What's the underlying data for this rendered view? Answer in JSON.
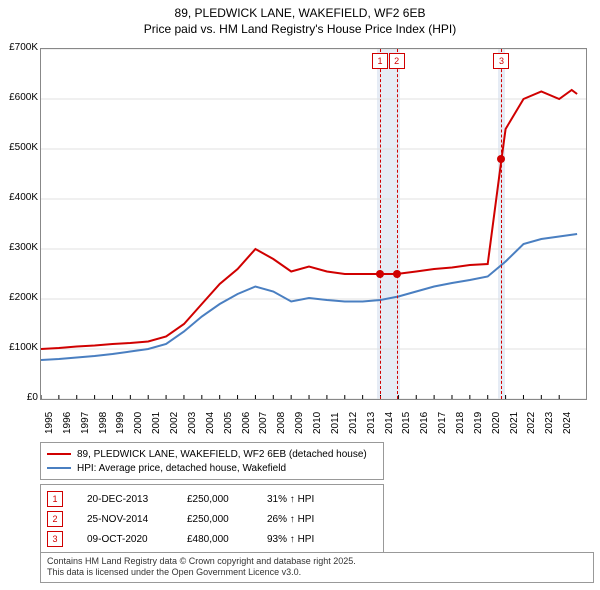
{
  "title": {
    "line1": "89, PLEDWICK LANE, WAKEFIELD, WF2 6EB",
    "line2": "Price paid vs. HM Land Registry's House Price Index (HPI)"
  },
  "chart": {
    "type": "line",
    "x_min": 1995,
    "x_max": 2025.5,
    "y_min": 0,
    "y_max": 700000,
    "y_ticks": [
      0,
      100000,
      200000,
      300000,
      400000,
      500000,
      600000,
      700000
    ],
    "y_tick_labels": [
      "£0",
      "£100K",
      "£200K",
      "£300K",
      "£400K",
      "£500K",
      "£600K",
      "£700K"
    ],
    "x_ticks": [
      1995,
      1996,
      1997,
      1998,
      1999,
      2000,
      2001,
      2002,
      2003,
      2004,
      2005,
      2006,
      2007,
      2008,
      2009,
      2010,
      2011,
      2012,
      2013,
      2014,
      2015,
      2016,
      2017,
      2018,
      2019,
      2020,
      2021,
      2022,
      2023,
      2024
    ],
    "grid_color": "#e0e0e0",
    "background_color": "#ffffff",
    "band_color": "#e6ecf5",
    "series": {
      "price_paid": {
        "color": "#d00000",
        "width": 2,
        "points": [
          [
            1995,
            100000
          ],
          [
            1996,
            102000
          ],
          [
            1997,
            105000
          ],
          [
            1998,
            107000
          ],
          [
            1999,
            110000
          ],
          [
            2000,
            112000
          ],
          [
            2001,
            115000
          ],
          [
            2002,
            125000
          ],
          [
            2003,
            150000
          ],
          [
            2004,
            190000
          ],
          [
            2005,
            230000
          ],
          [
            2006,
            260000
          ],
          [
            2007,
            300000
          ],
          [
            2008,
            280000
          ],
          [
            2009,
            255000
          ],
          [
            2010,
            265000
          ],
          [
            2011,
            255000
          ],
          [
            2012,
            250000
          ],
          [
            2013,
            250000
          ],
          [
            2013.97,
            250000
          ],
          [
            2014.9,
            250000
          ],
          [
            2016,
            255000
          ],
          [
            2017,
            260000
          ],
          [
            2018,
            263000
          ],
          [
            2019,
            268000
          ],
          [
            2020,
            270000
          ],
          [
            2020.77,
            480000
          ],
          [
            2021,
            540000
          ],
          [
            2022,
            600000
          ],
          [
            2023,
            615000
          ],
          [
            2024,
            600000
          ],
          [
            2024.7,
            618000
          ],
          [
            2025,
            610000
          ]
        ]
      },
      "hpi": {
        "color": "#4a7fc1",
        "width": 2,
        "points": [
          [
            1995,
            78000
          ],
          [
            1996,
            80000
          ],
          [
            1997,
            83000
          ],
          [
            1998,
            86000
          ],
          [
            1999,
            90000
          ],
          [
            2000,
            95000
          ],
          [
            2001,
            100000
          ],
          [
            2002,
            110000
          ],
          [
            2003,
            135000
          ],
          [
            2004,
            165000
          ],
          [
            2005,
            190000
          ],
          [
            2006,
            210000
          ],
          [
            2007,
            225000
          ],
          [
            2008,
            215000
          ],
          [
            2009,
            195000
          ],
          [
            2010,
            202000
          ],
          [
            2011,
            198000
          ],
          [
            2012,
            195000
          ],
          [
            2013,
            195000
          ],
          [
            2014,
            198000
          ],
          [
            2015,
            205000
          ],
          [
            2016,
            215000
          ],
          [
            2017,
            225000
          ],
          [
            2018,
            232000
          ],
          [
            2019,
            238000
          ],
          [
            2020,
            245000
          ],
          [
            2021,
            275000
          ],
          [
            2022,
            310000
          ],
          [
            2023,
            320000
          ],
          [
            2024,
            325000
          ],
          [
            2025,
            330000
          ]
        ]
      }
    },
    "markers": [
      {
        "id": "1",
        "x": 2013.97,
        "y": 250000,
        "color": "#d00000"
      },
      {
        "id": "2",
        "x": 2014.9,
        "y": 250000,
        "color": "#d00000"
      },
      {
        "id": "3",
        "x": 2020.77,
        "y": 480000,
        "color": "#d00000"
      }
    ],
    "bands": [
      {
        "from": 2013.8,
        "to": 2015.1
      },
      {
        "from": 2020.55,
        "to": 2020.95
      }
    ]
  },
  "legend": {
    "rows": [
      {
        "color": "#d00000",
        "label": "89, PLEDWICK LANE, WAKEFIELD, WF2 6EB (detached house)"
      },
      {
        "color": "#4a7fc1",
        "label": "HPI: Average price, detached house, Wakefield"
      }
    ]
  },
  "events": [
    {
      "id": "1",
      "color": "#d00000",
      "date": "20-DEC-2013",
      "price": "£250,000",
      "delta": "31% ↑ HPI"
    },
    {
      "id": "2",
      "color": "#d00000",
      "date": "25-NOV-2014",
      "price": "£250,000",
      "delta": "26% ↑ HPI"
    },
    {
      "id": "3",
      "color": "#d00000",
      "date": "09-OCT-2020",
      "price": "£480,000",
      "delta": "93% ↑ HPI"
    }
  ],
  "footer": {
    "line1": "Contains HM Land Registry data © Crown copyright and database right 2025.",
    "line2": "This data is licensed under the Open Government Licence v3.0."
  }
}
